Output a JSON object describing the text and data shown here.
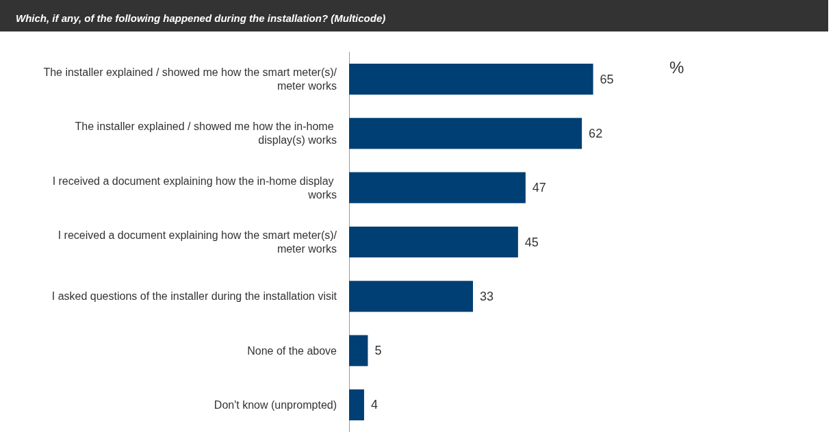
{
  "chart_data": {
    "type": "bar",
    "orientation": "horizontal",
    "title": "Which, if any, of the following happened during the installation? (Multicode)",
    "categories": [
      "The installer explained / showed me how the smart meter(s)/meter works",
      "The installer explained / showed me how the in-home display(s) works",
      "I received a document explaining how the in-home display works",
      "I received a document explaining how the smart meter(s)/meter works",
      "I asked questions of the installer during the installation visit",
      "None of the above",
      "Don't know (unprompted)"
    ],
    "values": [
      65,
      62,
      47,
      45,
      33,
      5,
      4
    ],
    "color": "#003f73",
    "data_labels": true,
    "tick_labels": "y",
    "annotations": [
      "%"
    ]
  }
}
